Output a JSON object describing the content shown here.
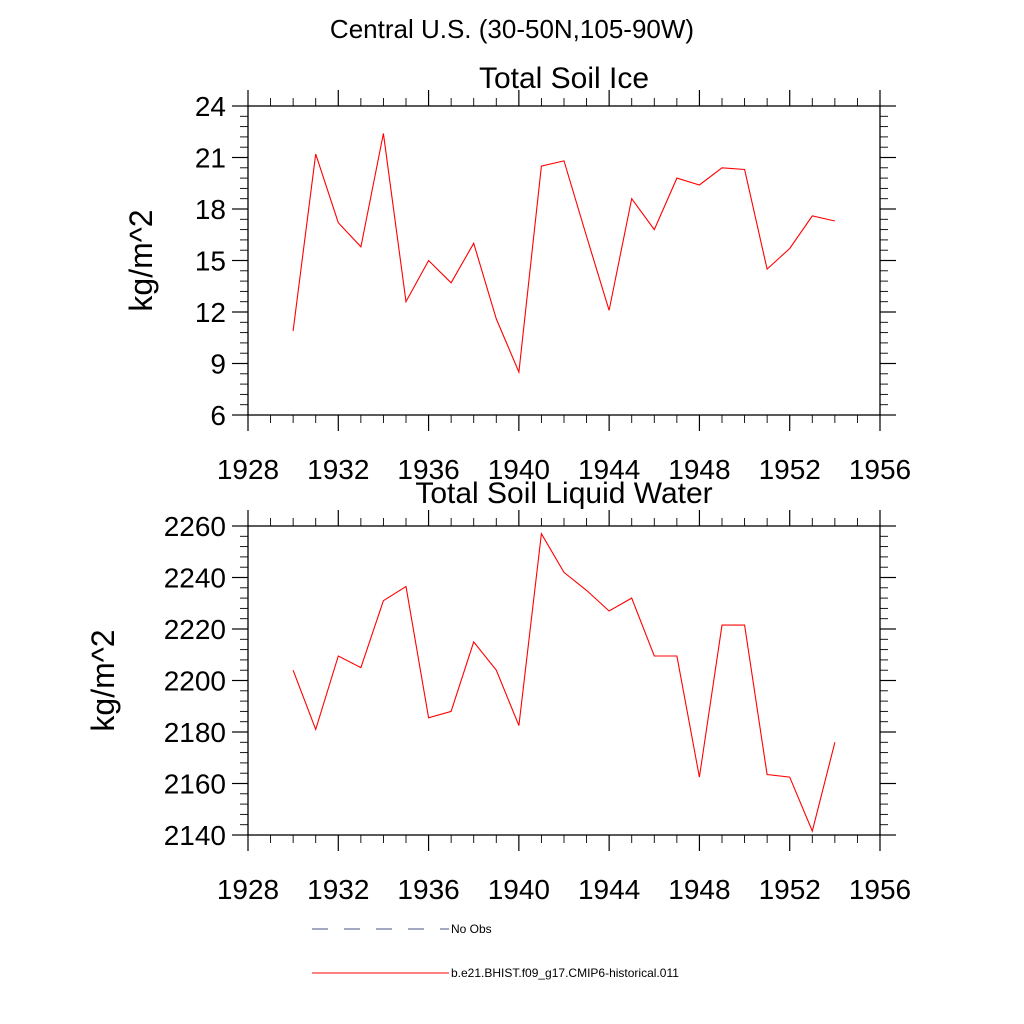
{
  "page": {
    "title": "Central U.S. (30-50N,105-90W)"
  },
  "legend": [
    {
      "label": "No Obs",
      "color": "#4a4f8a",
      "dash": "dashed"
    },
    {
      "label": "b.e21.BHIST.f09_g17.CMIP6-historical.011",
      "color": "#ff0000",
      "dash": "solid"
    }
  ],
  "chart_data": [
    {
      "type": "line",
      "title": "Total Soil Ice",
      "xlabel": "",
      "ylabel": "kg/m^2",
      "xlim": [
        1928,
        1956
      ],
      "ylim": [
        6,
        24
      ],
      "xticks": [
        1928,
        1932,
        1936,
        1940,
        1944,
        1948,
        1952,
        1956
      ],
      "yticks": [
        6,
        9,
        12,
        15,
        18,
        21,
        24
      ],
      "grid": false,
      "series": [
        {
          "name": "b.e21.BHIST.f09_g17.CMIP6-historical.011",
          "color": "#ff0000",
          "x": [
            1930,
            1931,
            1932,
            1933,
            1934,
            1935,
            1936,
            1937,
            1938,
            1939,
            1940,
            1941,
            1942,
            1943,
            1944,
            1945,
            1946,
            1947,
            1948,
            1949,
            1950,
            1951,
            1952,
            1953,
            1954
          ],
          "values": [
            10.9,
            21.2,
            17.2,
            15.8,
            22.4,
            12.6,
            15.0,
            13.7,
            16.0,
            11.6,
            8.5,
            20.5,
            20.8,
            16.4,
            12.1,
            18.6,
            16.8,
            19.8,
            19.4,
            20.4,
            20.3,
            14.5,
            15.7,
            17.6,
            17.3
          ]
        }
      ]
    },
    {
      "type": "line",
      "title": "Total Soil Liquid Water",
      "xlabel": "",
      "ylabel": "kg/m^2",
      "xlim": [
        1928,
        1956
      ],
      "ylim": [
        2140,
        2260
      ],
      "xticks": [
        1928,
        1932,
        1936,
        1940,
        1944,
        1948,
        1952,
        1956
      ],
      "yticks": [
        2140,
        2160,
        2180,
        2200,
        2220,
        2240,
        2260
      ],
      "grid": false,
      "series": [
        {
          "name": "b.e21.BHIST.f09_g17.CMIP6-historical.011",
          "color": "#ff0000",
          "x": [
            1930,
            1931,
            1932,
            1933,
            1934,
            1935,
            1936,
            1937,
            1938,
            1939,
            1940,
            1941,
            1942,
            1943,
            1944,
            1945,
            1946,
            1947,
            1948,
            1949,
            1950,
            1951,
            1952,
            1953,
            1954
          ],
          "values": [
            2204,
            2181,
            2209.5,
            2205,
            2231,
            2236.5,
            2185.5,
            2188,
            2215,
            2204,
            2182.5,
            2257,
            2242,
            2235,
            2227,
            2232,
            2209.5,
            2209.5,
            2162.5,
            2221.5,
            2221.5,
            2163.5,
            2162.5,
            2141.5,
            2176
          ]
        }
      ]
    }
  ]
}
